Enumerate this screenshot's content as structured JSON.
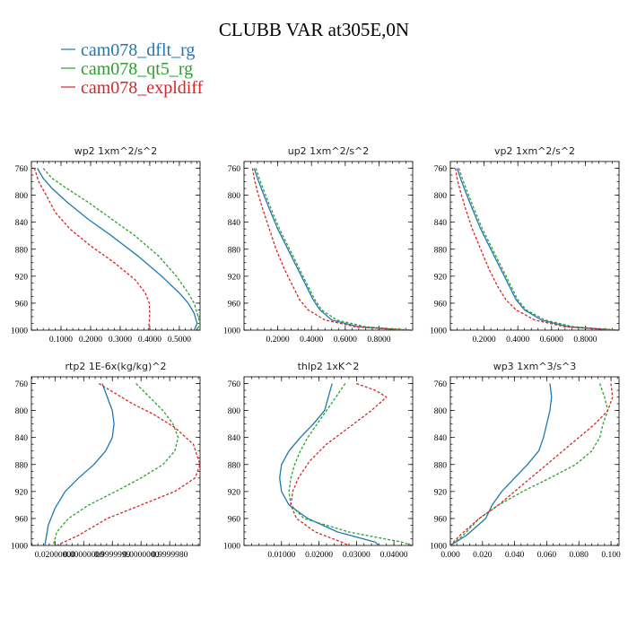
{
  "figure": {
    "title": "CLUBB VAR at305E,0N"
  },
  "colors": {
    "dflt": "#1f77b4",
    "qt5": "#2ca02c",
    "expl": "#d62728"
  },
  "legend": [
    {
      "label": "cam078_dflt_rg",
      "color": "#1f77b4"
    },
    {
      "label": "cam078_qt5_rg",
      "color": "#2ca02c"
    },
    {
      "label": "cam078_expldiff",
      "color": "#d62728"
    }
  ],
  "chart_data": [
    {
      "type": "line",
      "title": "wp2  1xm^2/s^2",
      "ylim": [
        1000,
        750
      ],
      "xlim": [
        0.0,
        0.57
      ],
      "y_ticks": [
        760,
        800,
        840,
        880,
        920,
        960,
        1000
      ],
      "x_ticks": [
        0.1,
        0.2,
        0.3,
        0.4,
        0.5
      ],
      "x_tick_labels": [
        "0.1000",
        "0.2000",
        "0.3000",
        "0.4000",
        "0.5000"
      ],
      "series": [
        {
          "name": "cam078_dflt_rg",
          "color": "#1f77b4",
          "dashed": false,
          "x": [
            0.02,
            0.04,
            0.07,
            0.12,
            0.19,
            0.27,
            0.36,
            0.44,
            0.5,
            0.53,
            0.55,
            0.56,
            0.55
          ],
          "y": [
            760,
            775,
            790,
            810,
            835,
            860,
            890,
            920,
            945,
            960,
            975,
            990,
            1000
          ]
        },
        {
          "name": "cam078_qt5_rg",
          "color": "#2ca02c",
          "dashed": true,
          "x": [
            0.04,
            0.07,
            0.12,
            0.19,
            0.27,
            0.35,
            0.43,
            0.49,
            0.53,
            0.55,
            0.56,
            0.57,
            0.56
          ],
          "y": [
            760,
            775,
            790,
            810,
            835,
            860,
            890,
            920,
            945,
            960,
            975,
            990,
            1000
          ]
        },
        {
          "name": "cam078_expldiff",
          "color": "#d62728",
          "dashed": true,
          "x": [
            0.01,
            0.025,
            0.05,
            0.08,
            0.13,
            0.2,
            0.28,
            0.35,
            0.385,
            0.398,
            0.4,
            0.398,
            0.395
          ],
          "y": [
            760,
            780,
            800,
            825,
            850,
            875,
            900,
            925,
            945,
            960,
            975,
            990,
            1000
          ]
        }
      ]
    },
    {
      "type": "line",
      "title": "up2  1xm^2/s^2",
      "ylim": [
        1000,
        750
      ],
      "xlim": [
        0.0,
        1.0
      ],
      "y_ticks": [
        760,
        800,
        840,
        880,
        920,
        960,
        1000
      ],
      "x_ticks": [
        0.2,
        0.4,
        0.6,
        0.8
      ],
      "x_tick_labels": [
        "0.2000",
        "0.4000",
        "0.6000",
        "0.8000"
      ],
      "series": [
        {
          "name": "cam078_dflt_rg",
          "color": "#1f77b4",
          "dashed": false,
          "x": [
            0.06,
            0.08,
            0.11,
            0.15,
            0.2,
            0.26,
            0.32,
            0.37,
            0.41,
            0.45,
            0.52,
            0.68,
            0.9,
            1.0
          ],
          "y": [
            760,
            775,
            795,
            820,
            850,
            880,
            910,
            935,
            955,
            970,
            985,
            995,
            999,
            1000
          ]
        },
        {
          "name": "cam078_qt5_rg",
          "color": "#2ca02c",
          "dashed": true,
          "x": [
            0.07,
            0.09,
            0.12,
            0.16,
            0.21,
            0.27,
            0.33,
            0.38,
            0.42,
            0.46,
            0.55,
            0.72,
            0.93,
            1.0
          ],
          "y": [
            760,
            775,
            795,
            820,
            850,
            880,
            910,
            935,
            955,
            970,
            985,
            995,
            999,
            1000
          ]
        },
        {
          "name": "cam078_expldiff",
          "color": "#d62728",
          "dashed": true,
          "x": [
            0.05,
            0.06,
            0.08,
            0.11,
            0.15,
            0.19,
            0.24,
            0.29,
            0.33,
            0.38,
            0.48,
            0.66,
            0.9,
            1.0
          ],
          "y": [
            760,
            775,
            795,
            820,
            850,
            880,
            910,
            935,
            955,
            970,
            985,
            995,
            999,
            1000
          ]
        }
      ]
    },
    {
      "type": "line",
      "title": "vp2  1xm^2/s^2",
      "ylim": [
        1000,
        750
      ],
      "xlim": [
        0.0,
        1.0
      ],
      "y_ticks": [
        760,
        800,
        840,
        880,
        920,
        960,
        1000
      ],
      "x_ticks": [
        0.2,
        0.4,
        0.6,
        0.8
      ],
      "x_tick_labels": [
        "0.2000",
        "0.4000",
        "0.6000",
        "0.8000"
      ],
      "series": [
        {
          "name": "cam078_dflt_rg",
          "color": "#1f77b4",
          "dashed": false,
          "x": [
            0.04,
            0.06,
            0.09,
            0.13,
            0.18,
            0.24,
            0.3,
            0.35,
            0.39,
            0.44,
            0.54,
            0.7,
            0.92,
            1.0
          ],
          "y": [
            760,
            775,
            795,
            820,
            850,
            880,
            910,
            935,
            955,
            970,
            985,
            995,
            999,
            1000
          ]
        },
        {
          "name": "cam078_qt5_rg",
          "color": "#2ca02c",
          "dashed": true,
          "x": [
            0.05,
            0.07,
            0.1,
            0.14,
            0.19,
            0.25,
            0.31,
            0.36,
            0.4,
            0.45,
            0.56,
            0.73,
            0.94,
            1.0
          ],
          "y": [
            760,
            775,
            795,
            820,
            850,
            880,
            910,
            935,
            955,
            970,
            985,
            995,
            999,
            1000
          ]
        },
        {
          "name": "cam078_expldiff",
          "color": "#d62728",
          "dashed": true,
          "x": [
            0.03,
            0.04,
            0.06,
            0.09,
            0.13,
            0.18,
            0.23,
            0.28,
            0.33,
            0.39,
            0.5,
            0.68,
            0.91,
            1.0
          ],
          "y": [
            760,
            775,
            795,
            820,
            850,
            880,
            910,
            935,
            955,
            970,
            985,
            995,
            999,
            1000
          ]
        }
      ]
    },
    {
      "type": "line",
      "title": "rtp2  1E-6x(kg/kg)^2",
      "ylim": [
        1000,
        750
      ],
      "xlim": [
        0.0,
        1.0
      ],
      "y_ticks": [
        760,
        800,
        840,
        880,
        920,
        960,
        1000
      ],
      "x_ticks": [
        0.14,
        0.31,
        0.48,
        0.65,
        0.82
      ],
      "x_tick_labels": [
        "0.02000000",
        "0.00000000",
        "0.9999999",
        "0.0000000",
        "0.9999980"
      ],
      "series": [
        {
          "name": "cam078_dflt_rg",
          "color": "#1f77b4",
          "dashed": false,
          "x": [
            0.42,
            0.45,
            0.48,
            0.49,
            0.48,
            0.44,
            0.37,
            0.28,
            0.2,
            0.14,
            0.1,
            0.08
          ],
          "y": [
            760,
            780,
            800,
            820,
            840,
            860,
            880,
            900,
            920,
            945,
            970,
            1000
          ]
        },
        {
          "name": "cam078_qt5_rg",
          "color": "#2ca02c",
          "dashed": true,
          "x": [
            0.62,
            0.7,
            0.78,
            0.84,
            0.87,
            0.85,
            0.78,
            0.65,
            0.5,
            0.34,
            0.22,
            0.15,
            0.13
          ],
          "y": [
            760,
            780,
            800,
            820,
            840,
            860,
            880,
            900,
            920,
            940,
            960,
            980,
            1000
          ]
        },
        {
          "name": "cam078_expldiff",
          "color": "#d62728",
          "dashed": true,
          "x": [
            0.4,
            0.5,
            0.6,
            0.72,
            0.85,
            0.96,
            1.0,
            0.97,
            0.85,
            0.65,
            0.45,
            0.28,
            0.15
          ],
          "y": [
            760,
            775,
            790,
            805,
            825,
            850,
            880,
            900,
            920,
            940,
            960,
            985,
            1000
          ]
        }
      ]
    },
    {
      "type": "line",
      "title": "thlp2  1xK^2",
      "ylim": [
        1000,
        750
      ],
      "xlim": [
        0.0,
        0.045
      ],
      "y_ticks": [
        760,
        800,
        840,
        880,
        920,
        960,
        1000
      ],
      "x_ticks": [
        0.01,
        0.02,
        0.03,
        0.04
      ],
      "x_tick_labels": [
        "0.01000",
        "0.02000",
        "0.03000",
        "0.04000"
      ],
      "series": [
        {
          "name": "cam078_dflt_rg",
          "color": "#1f77b4",
          "dashed": false,
          "x": [
            0.0235,
            0.0225,
            0.0215,
            0.0185,
            0.015,
            0.012,
            0.01,
            0.0095,
            0.01,
            0.012,
            0.017,
            0.025,
            0.035,
            0.036
          ],
          "y": [
            760,
            780,
            800,
            820,
            840,
            860,
            880,
            900,
            920,
            940,
            960,
            980,
            995,
            1000
          ]
        },
        {
          "name": "cam078_qt5_rg",
          "color": "#2ca02c",
          "dashed": true,
          "x": [
            0.027,
            0.0245,
            0.022,
            0.0195,
            0.017,
            0.015,
            0.0135,
            0.0125,
            0.012,
            0.0125,
            0.016,
            0.028,
            0.042,
            0.045
          ],
          "y": [
            760,
            780,
            800,
            820,
            840,
            860,
            880,
            900,
            920,
            940,
            960,
            980,
            995,
            1000
          ]
        },
        {
          "name": "cam078_expldiff",
          "color": "#d62728",
          "dashed": true,
          "x": [
            0.03,
            0.035,
            0.038,
            0.034,
            0.028,
            0.022,
            0.0175,
            0.0145,
            0.013,
            0.0125,
            0.014,
            0.019,
            0.026,
            0.028
          ],
          "y": [
            760,
            770,
            780,
            800,
            825,
            850,
            875,
            900,
            920,
            940,
            960,
            980,
            995,
            1000
          ]
        }
      ]
    },
    {
      "type": "line",
      "title": "wp3  1xm^3/s^3",
      "ylim": [
        1000,
        750
      ],
      "xlim": [
        0.0,
        0.105
      ],
      "y_ticks": [
        760,
        800,
        840,
        880,
        920,
        960,
        1000
      ],
      "x_ticks": [
        0.0,
        0.02,
        0.04,
        0.06,
        0.08,
        0.1
      ],
      "x_tick_labels": [
        "0.000",
        "0.020",
        "0.040",
        "0.060",
        "0.080",
        "0.100"
      ],
      "series": [
        {
          "name": "cam078_dflt_rg",
          "color": "#1f77b4",
          "dashed": false,
          "x": [
            0.062,
            0.063,
            0.062,
            0.06,
            0.058,
            0.055,
            0.048,
            0.04,
            0.032,
            0.026,
            0.022,
            0.01,
            0.0
          ],
          "y": [
            760,
            780,
            800,
            820,
            840,
            860,
            880,
            900,
            920,
            940,
            960,
            985,
            1000
          ]
        },
        {
          "name": "cam078_qt5_rg",
          "color": "#2ca02c",
          "dashed": true,
          "x": [
            0.093,
            0.096,
            0.098,
            0.095,
            0.093,
            0.088,
            0.078,
            0.062,
            0.045,
            0.03,
            0.018,
            0.008,
            0.0
          ],
          "y": [
            760,
            780,
            800,
            820,
            840,
            860,
            880,
            900,
            920,
            940,
            960,
            985,
            1000
          ]
        },
        {
          "name": "cam078_expldiff",
          "color": "#d62728",
          "dashed": true,
          "x": [
            0.1,
            0.101,
            0.098,
            0.09,
            0.08,
            0.07,
            0.06,
            0.05,
            0.04,
            0.03,
            0.018,
            0.006,
            0.0
          ],
          "y": [
            760,
            780,
            800,
            820,
            840,
            860,
            880,
            900,
            920,
            940,
            960,
            985,
            1000
          ]
        }
      ]
    }
  ]
}
